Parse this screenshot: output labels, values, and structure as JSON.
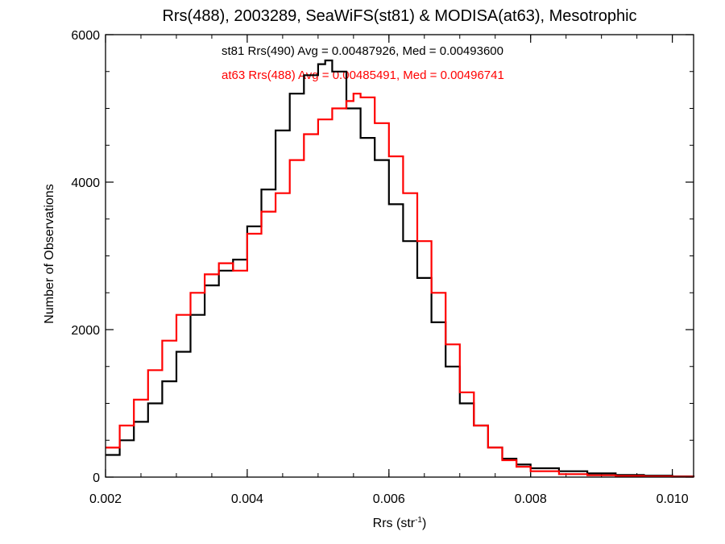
{
  "chart_data": {
    "type": "line",
    "title": "Rrs(488), 2003289, SeaWiFS(st81) & MODISA(at63), Mesotrophic",
    "xlabel_main": "Rrs (str",
    "xlabel_sup": "-1",
    "xlabel_close": ")",
    "ylabel": "Number of Observations",
    "xlim": [
      0.002,
      0.0103
    ],
    "ylim": [
      0,
      6000
    ],
    "xticks": [
      {
        "value": 0.002,
        "label": "0.002"
      },
      {
        "value": 0.004,
        "label": "0.004"
      },
      {
        "value": 0.006,
        "label": "0.006"
      },
      {
        "value": 0.008,
        "label": "0.008"
      },
      {
        "value": 0.01,
        "label": "0.010"
      }
    ],
    "yticks": [
      {
        "value": 0,
        "label": "0"
      },
      {
        "value": 2000,
        "label": "2000"
      },
      {
        "value": 4000,
        "label": "4000"
      },
      {
        "value": 6000,
        "label": "6000"
      }
    ],
    "x_minor_step": 0.0005,
    "y_minor_step": 500,
    "grid": false,
    "annotations": [
      {
        "text": "st81 Rrs(490) Avg = 0.00487926, Med = 0.00493600",
        "color": "#000000"
      },
      {
        "text": "at63 Rrs(488) Avg = 0.00485491, Med = 0.00496741",
        "color": "#ff0000"
      }
    ],
    "series": [
      {
        "color": "#000000",
        "x": [
          0.002,
          0.0022,
          0.0024,
          0.0026,
          0.0028,
          0.003,
          0.0032,
          0.0034,
          0.0036,
          0.0038,
          0.004,
          0.0042,
          0.0044,
          0.0046,
          0.0048,
          0.005,
          0.0051,
          0.0052,
          0.0054,
          0.0056,
          0.0058,
          0.006,
          0.0062,
          0.0064,
          0.0066,
          0.0068,
          0.007,
          0.0072,
          0.0074,
          0.0076,
          0.0078,
          0.008,
          0.0084,
          0.0088,
          0.0092,
          0.0096,
          0.01,
          0.0103
        ],
        "y": [
          300,
          500,
          750,
          1000,
          1300,
          1700,
          2200,
          2600,
          2800,
          2950,
          3400,
          3900,
          4700,
          5200,
          5450,
          5600,
          5650,
          5500,
          5000,
          4600,
          4300,
          3700,
          3200,
          2700,
          2100,
          1500,
          1000,
          700,
          400,
          250,
          170,
          120,
          80,
          50,
          30,
          20,
          10,
          5
        ]
      },
      {
        "color": "#ff0000",
        "x": [
          0.002,
          0.0022,
          0.0024,
          0.0026,
          0.0028,
          0.003,
          0.0032,
          0.0034,
          0.0036,
          0.0038,
          0.004,
          0.0042,
          0.0044,
          0.0046,
          0.0048,
          0.005,
          0.0052,
          0.0054,
          0.0055,
          0.0056,
          0.0058,
          0.006,
          0.0062,
          0.0064,
          0.0066,
          0.0068,
          0.007,
          0.0072,
          0.0074,
          0.0076,
          0.0078,
          0.008,
          0.0084,
          0.0088,
          0.0092,
          0.0096,
          0.01,
          0.0103
        ],
        "y": [
          400,
          700,
          1050,
          1450,
          1850,
          2200,
          2500,
          2750,
          2900,
          2800,
          3300,
          3600,
          3850,
          4300,
          4650,
          4850,
          5000,
          5100,
          5200,
          5150,
          4800,
          4350,
          3850,
          3200,
          2500,
          1800,
          1150,
          700,
          400,
          230,
          140,
          80,
          40,
          25,
          15,
          10,
          5,
          0
        ]
      }
    ]
  }
}
